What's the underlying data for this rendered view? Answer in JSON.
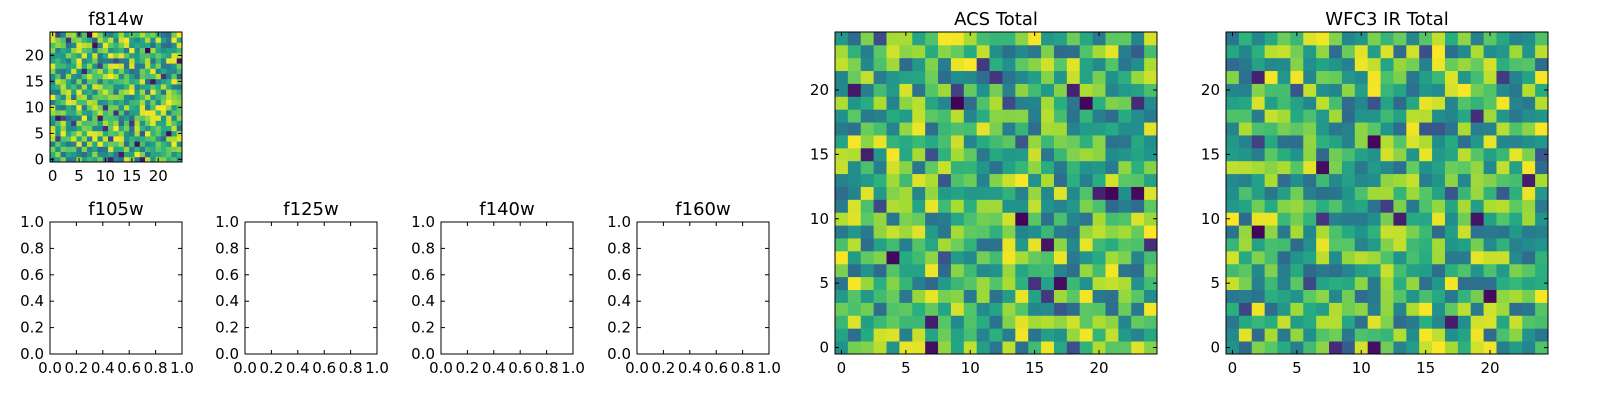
{
  "chart_data": [
    {
      "type": "heatmap",
      "title": "f814w",
      "xlim": [
        -0.5,
        24.5
      ],
      "ylim": [
        -0.5,
        24.5
      ],
      "xticks": [
        0,
        5,
        10,
        15,
        20
      ],
      "yticks": [
        0,
        5,
        10,
        15,
        20
      ],
      "size": 25,
      "seed": 11,
      "colormap": "viridis"
    },
    {
      "type": "heatmap",
      "title": "",
      "empty": true,
      "xlim": [
        0,
        1
      ],
      "ylim": [
        0,
        1
      ],
      "xticks": [],
      "yticks": []
    },
    {
      "type": "heatmap",
      "title": "ACS Total",
      "xlim": [
        -0.5,
        24.5
      ],
      "ylim": [
        -0.5,
        24.5
      ],
      "xticks": [
        0,
        5,
        10,
        15,
        20
      ],
      "yticks": [
        0,
        5,
        10,
        15,
        20
      ],
      "size": 25,
      "seed": 29,
      "colormap": "viridis"
    },
    {
      "type": "heatmap",
      "title": "WFC3 IR Total",
      "xlim": [
        -0.5,
        24.5
      ],
      "ylim": [
        -0.5,
        24.5
      ],
      "xticks": [
        0,
        5,
        10,
        15,
        20
      ],
      "yticks": [
        0,
        5,
        10,
        15,
        20
      ],
      "size": 25,
      "seed": 47,
      "colormap": "viridis"
    },
    {
      "type": "heatmap",
      "title": "f105w",
      "empty": true,
      "xlim": [
        0,
        1
      ],
      "ylim": [
        0,
        1
      ],
      "xticks": [
        0.0,
        0.2,
        0.4,
        0.6,
        0.8,
        1.0
      ],
      "yticks": [
        0.0,
        0.2,
        0.4,
        0.6,
        0.8,
        1.0
      ]
    },
    {
      "type": "heatmap",
      "title": "f125w",
      "empty": true,
      "xlim": [
        0,
        1
      ],
      "ylim": [
        0,
        1
      ],
      "xticks": [
        0.0,
        0.2,
        0.4,
        0.6,
        0.8,
        1.0
      ],
      "yticks": [
        0.0,
        0.2,
        0.4,
        0.6,
        0.8,
        1.0
      ]
    },
    {
      "type": "heatmap",
      "title": "f140w",
      "empty": true,
      "xlim": [
        0,
        1
      ],
      "ylim": [
        0,
        1
      ],
      "xticks": [
        0.0,
        0.2,
        0.4,
        0.6,
        0.8,
        1.0
      ],
      "yticks": [
        0.0,
        0.2,
        0.4,
        0.6,
        0.8,
        1.0
      ]
    },
    {
      "type": "heatmap",
      "title": "f160w",
      "empty": true,
      "xlim": [
        0,
        1
      ],
      "ylim": [
        0,
        1
      ],
      "xticks": [
        0.0,
        0.2,
        0.4,
        0.6,
        0.8,
        1.0
      ],
      "yticks": [
        0.0,
        0.2,
        0.4,
        0.6,
        0.8,
        1.0
      ]
    }
  ]
}
